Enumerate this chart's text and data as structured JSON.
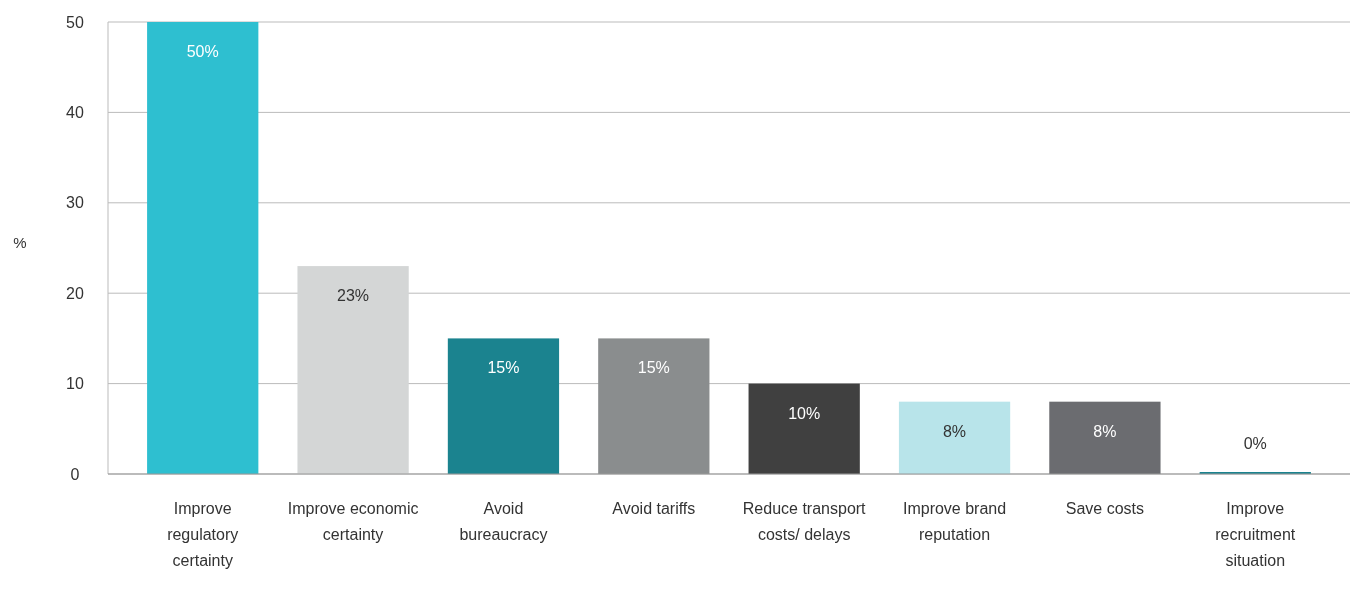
{
  "chart_data": {
    "type": "bar",
    "ylabel": "%",
    "categories": [
      "Improve regulatory certainty",
      "Improve economic certainty",
      "Avoid bureaucracy",
      "Avoid tariffs",
      "Reduce transport costs/ delays",
      "Improve brand reputation",
      "Save costs",
      "Improve recruitment situation"
    ],
    "values": [
      50,
      23,
      15,
      15,
      10,
      8,
      8,
      0
    ],
    "colors": [
      "#2ebfd0",
      "#d4d6d6",
      "#1b838f",
      "#8a8d8e",
      "#404040",
      "#b8e4ea",
      "#6b6c70",
      "#1b838f"
    ],
    "value_labels": [
      "50%",
      "23%",
      "15%",
      "15%",
      "10%",
      "8%",
      "8%",
      "0%"
    ],
    "ylim": [
      0,
      50
    ],
    "yticks": [
      0,
      10,
      20,
      30,
      40,
      50
    ],
    "grid": "y"
  }
}
